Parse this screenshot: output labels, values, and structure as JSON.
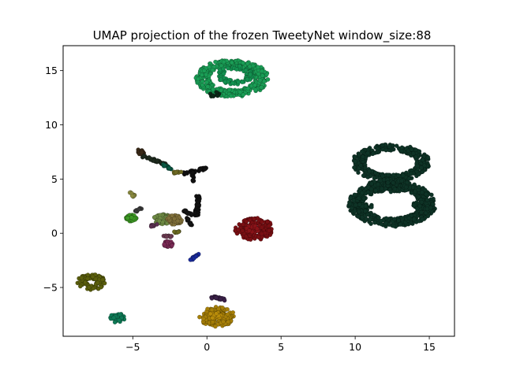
{
  "chart_data": {
    "type": "scatter",
    "title": "UMAP projection of the frozen TweetyNet window_size:88",
    "xlabel": "",
    "ylabel": "",
    "xlim": [
      -9.7,
      16.7
    ],
    "ylim": [
      -9.5,
      17.3
    ],
    "xticks": [
      -5,
      0,
      5,
      10,
      15
    ],
    "xtick_labels": [
      "−5",
      "0",
      "5",
      "10",
      "15"
    ],
    "yticks": [
      -5,
      0,
      5,
      10,
      15
    ],
    "ytick_labels": [
      "−5",
      "0",
      "5",
      "10",
      "15"
    ],
    "grid": false,
    "legend": "none",
    "clusters": [
      {
        "shape": "ring",
        "cx": 1.7,
        "cy": 14.3,
        "rx": 2.0,
        "ry": 1.4,
        "band": 0.45,
        "n": 420,
        "color": "#1a9d55"
      },
      {
        "shape": "ring",
        "cx": 1.9,
        "cy": 14.6,
        "rx": 1.0,
        "ry": 0.7,
        "band": 0.25,
        "n": 90,
        "color": "#139150"
      },
      {
        "shape": "blob",
        "cx": 0.5,
        "cy": 12.8,
        "rx": 0.35,
        "ry": 0.25,
        "n": 10,
        "color": "#0c2818"
      },
      {
        "shape": "ring",
        "cx": 12.4,
        "cy": 6.5,
        "rx": 2.2,
        "ry": 1.4,
        "band": 0.45,
        "n": 360,
        "color": "#0e3326"
      },
      {
        "shape": "ring",
        "cx": 12.5,
        "cy": 2.7,
        "rx": 2.4,
        "ry": 1.7,
        "band": 0.55,
        "n": 480,
        "color": "#0e3326"
      },
      {
        "shape": "blob",
        "cx": 12.4,
        "cy": 4.4,
        "rx": 1.6,
        "ry": 0.6,
        "n": 140,
        "color": "#0e3326"
      },
      {
        "shape": "blob",
        "cx": 14.6,
        "cy": 2.6,
        "rx": 0.7,
        "ry": 0.5,
        "n": 60,
        "color": "#0e3326"
      },
      {
        "shape": "segment",
        "x0": 9.9,
        "y0": 2.6,
        "x1": 11.2,
        "y1": 2.5,
        "n": 40,
        "spread": 0.12,
        "color": "#0e3326"
      },
      {
        "shape": "ring",
        "cx": 3.2,
        "cy": 0.4,
        "rx": 0.9,
        "ry": 0.7,
        "band": 0.4,
        "n": 160,
        "color": "#7a0f13"
      },
      {
        "shape": "blob",
        "cx": 3.1,
        "cy": 0.4,
        "rx": 0.5,
        "ry": 0.35,
        "n": 40,
        "color": "#8a1318"
      },
      {
        "shape": "ring",
        "cx": -7.8,
        "cy": -4.5,
        "rx": 0.65,
        "ry": 0.5,
        "band": 0.3,
        "n": 110,
        "color": "#5a5e0c"
      },
      {
        "shape": "ring",
        "cx": 0.7,
        "cy": -7.7,
        "rx": 0.8,
        "ry": 0.6,
        "band": 0.4,
        "n": 150,
        "color": "#a67f08"
      },
      {
        "shape": "blob",
        "cx": 0.6,
        "cy": -7.6,
        "rx": 0.45,
        "ry": 0.3,
        "n": 40,
        "color": "#b98c0a"
      },
      {
        "shape": "ring",
        "cx": -6.1,
        "cy": -7.8,
        "rx": 0.35,
        "ry": 0.3,
        "band": 0.2,
        "n": 40,
        "color": "#0e7a56"
      },
      {
        "shape": "segment",
        "x0": 0.4,
        "y0": -5.9,
        "x1": 1.2,
        "y1": -6.1,
        "n": 25,
        "spread": 0.12,
        "color": "#3a2048"
      },
      {
        "shape": "segment",
        "x0": -4.6,
        "y0": 7.6,
        "x1": -4.3,
        "y1": 7.3,
        "n": 25,
        "spread": 0.15,
        "color": "#3a2a18"
      },
      {
        "shape": "segment",
        "x0": -4.3,
        "y0": 7.1,
        "x1": -2.7,
        "y1": 6.3,
        "n": 35,
        "spread": 0.1,
        "color": "#1e2a1e"
      },
      {
        "shape": "segment",
        "x0": -3.0,
        "y0": 6.4,
        "x1": -2.4,
        "y1": 5.9,
        "n": 15,
        "spread": 0.08,
        "color": "#0b5a45"
      },
      {
        "shape": "segment",
        "x0": -1.6,
        "y0": 5.5,
        "x1": 0.0,
        "y1": 6.0,
        "n": 30,
        "spread": 0.1,
        "color": "#111111"
      },
      {
        "shape": "segment",
        "x0": -1.0,
        "y0": 5.7,
        "x1": -0.9,
        "y1": 4.8,
        "n": 15,
        "spread": 0.08,
        "color": "#111111"
      },
      {
        "shape": "segment",
        "x0": -2.2,
        "y0": 5.6,
        "x1": -1.8,
        "y1": 5.6,
        "n": 10,
        "spread": 0.08,
        "color": "#6e6a22"
      },
      {
        "shape": "segment",
        "x0": -0.6,
        "y0": 3.4,
        "x1": -0.7,
        "y1": 1.6,
        "n": 40,
        "spread": 0.12,
        "color": "#111111"
      },
      {
        "shape": "segment",
        "x0": -1.6,
        "y0": 2.1,
        "x1": -1.0,
        "y1": 1.7,
        "n": 15,
        "spread": 0.1,
        "color": "#151515"
      },
      {
        "shape": "segment",
        "x0": -1.3,
        "y0": 1.4,
        "x1": -1.0,
        "y1": 0.6,
        "n": 15,
        "spread": 0.1,
        "color": "#151515"
      },
      {
        "shape": "blob",
        "cx": -5.1,
        "cy": 1.4,
        "rx": 0.35,
        "ry": 0.3,
        "n": 70,
        "color": "#3d9a24"
      },
      {
        "shape": "segment",
        "x0": -5.2,
        "y0": 3.8,
        "x1": -4.9,
        "y1": 3.4,
        "n": 10,
        "spread": 0.08,
        "color": "#8a8a40"
      },
      {
        "shape": "segment",
        "x0": -4.8,
        "y0": 2.0,
        "x1": -4.4,
        "y1": 2.4,
        "n": 10,
        "spread": 0.08,
        "color": "#3a3a3a"
      },
      {
        "shape": "blob",
        "cx": -3.0,
        "cy": 1.3,
        "rx": 0.6,
        "ry": 0.45,
        "n": 110,
        "color": "#6e8a44"
      },
      {
        "shape": "blob",
        "cx": -2.2,
        "cy": 1.2,
        "rx": 0.5,
        "ry": 0.5,
        "n": 60,
        "color": "#80703a"
      },
      {
        "shape": "segment",
        "x0": -3.8,
        "y0": 0.7,
        "x1": -3.4,
        "y1": 0.8,
        "n": 10,
        "spread": 0.08,
        "color": "#5a3050"
      },
      {
        "shape": "segment",
        "x0": -2.2,
        "y0": 0.1,
        "x1": -1.8,
        "y1": 0.2,
        "n": 8,
        "spread": 0.06,
        "color": "#6a6a20"
      },
      {
        "shape": "segment",
        "x0": -2.9,
        "y0": -0.3,
        "x1": -2.4,
        "y1": -0.3,
        "n": 10,
        "spread": 0.08,
        "color": "#6a3a50"
      },
      {
        "shape": "blob",
        "cx": -2.6,
        "cy": -1.0,
        "rx": 0.3,
        "ry": 0.3,
        "n": 45,
        "color": "#7a2a55"
      },
      {
        "shape": "segment",
        "x0": -1.1,
        "y0": -2.4,
        "x1": -0.6,
        "y1": -2.0,
        "n": 25,
        "spread": 0.1,
        "color": "#1a2a9a"
      }
    ]
  }
}
